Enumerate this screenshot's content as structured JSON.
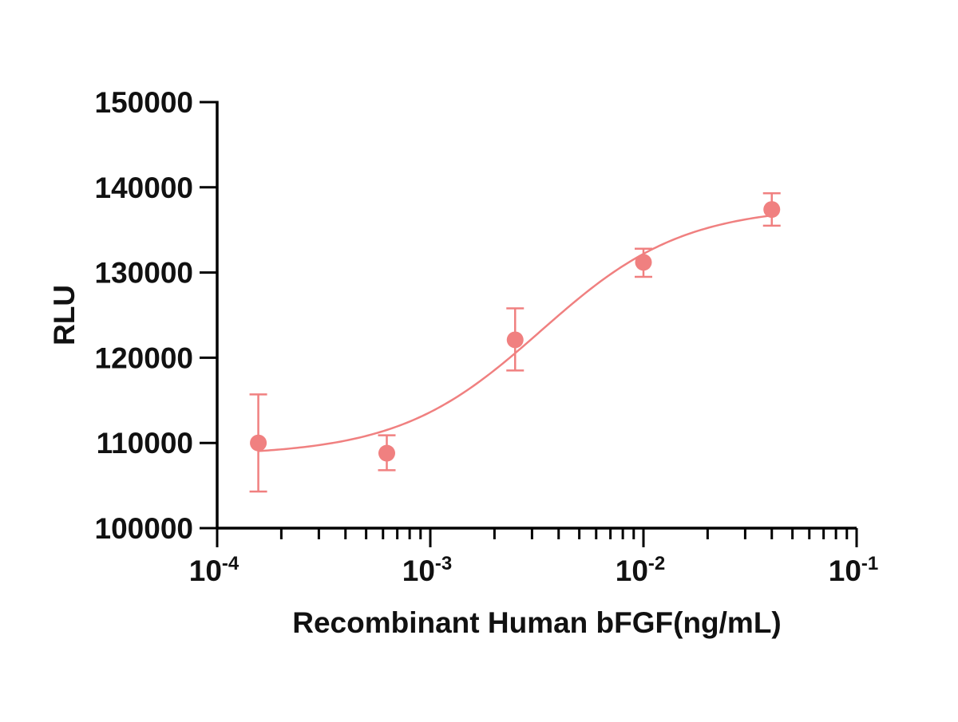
{
  "chart_data": {
    "type": "scatter",
    "title": "",
    "xlabel": "Recombinant Human bFGF(ng/mL)",
    "ylabel": "RLU",
    "x_scale": "log",
    "xlim": [
      0.0001,
      0.1
    ],
    "ylim": [
      100000,
      150000
    ],
    "x_ticks": [
      {
        "value": 0.0001,
        "base": "10",
        "exp": "-4"
      },
      {
        "value": 0.001,
        "base": "10",
        "exp": "-3"
      },
      {
        "value": 0.01,
        "base": "10",
        "exp": "-2"
      },
      {
        "value": 0.1,
        "base": "10",
        "exp": "-1"
      }
    ],
    "y_ticks": [
      {
        "value": 100000,
        "label": "100000"
      },
      {
        "value": 110000,
        "label": "110000"
      },
      {
        "value": 120000,
        "label": "120000"
      },
      {
        "value": 130000,
        "label": "130000"
      },
      {
        "value": 140000,
        "label": "140000"
      },
      {
        "value": 150000,
        "label": "150000"
      }
    ],
    "grid": false,
    "legend": "none",
    "color": "#f08080",
    "series": [
      {
        "points": [
          {
            "x": 0.000156,
            "y": 110000,
            "y_low": 104300,
            "y_high": 115700
          },
          {
            "x": 0.000625,
            "y": 108800,
            "y_low": 106800,
            "y_high": 110900
          },
          {
            "x": 0.0025,
            "y": 122100,
            "y_low": 118500,
            "y_high": 125800
          },
          {
            "x": 0.01,
            "y": 131200,
            "y_low": 129500,
            "y_high": 132800
          },
          {
            "x": 0.04,
            "y": 137400,
            "y_low": 135500,
            "y_high": 139300
          }
        ],
        "fit": {
          "model": "four-parameter logistic",
          "bottom": 108500,
          "top": 137800,
          "ec50": 0.0033,
          "hill": 1.3
        }
      }
    ]
  }
}
